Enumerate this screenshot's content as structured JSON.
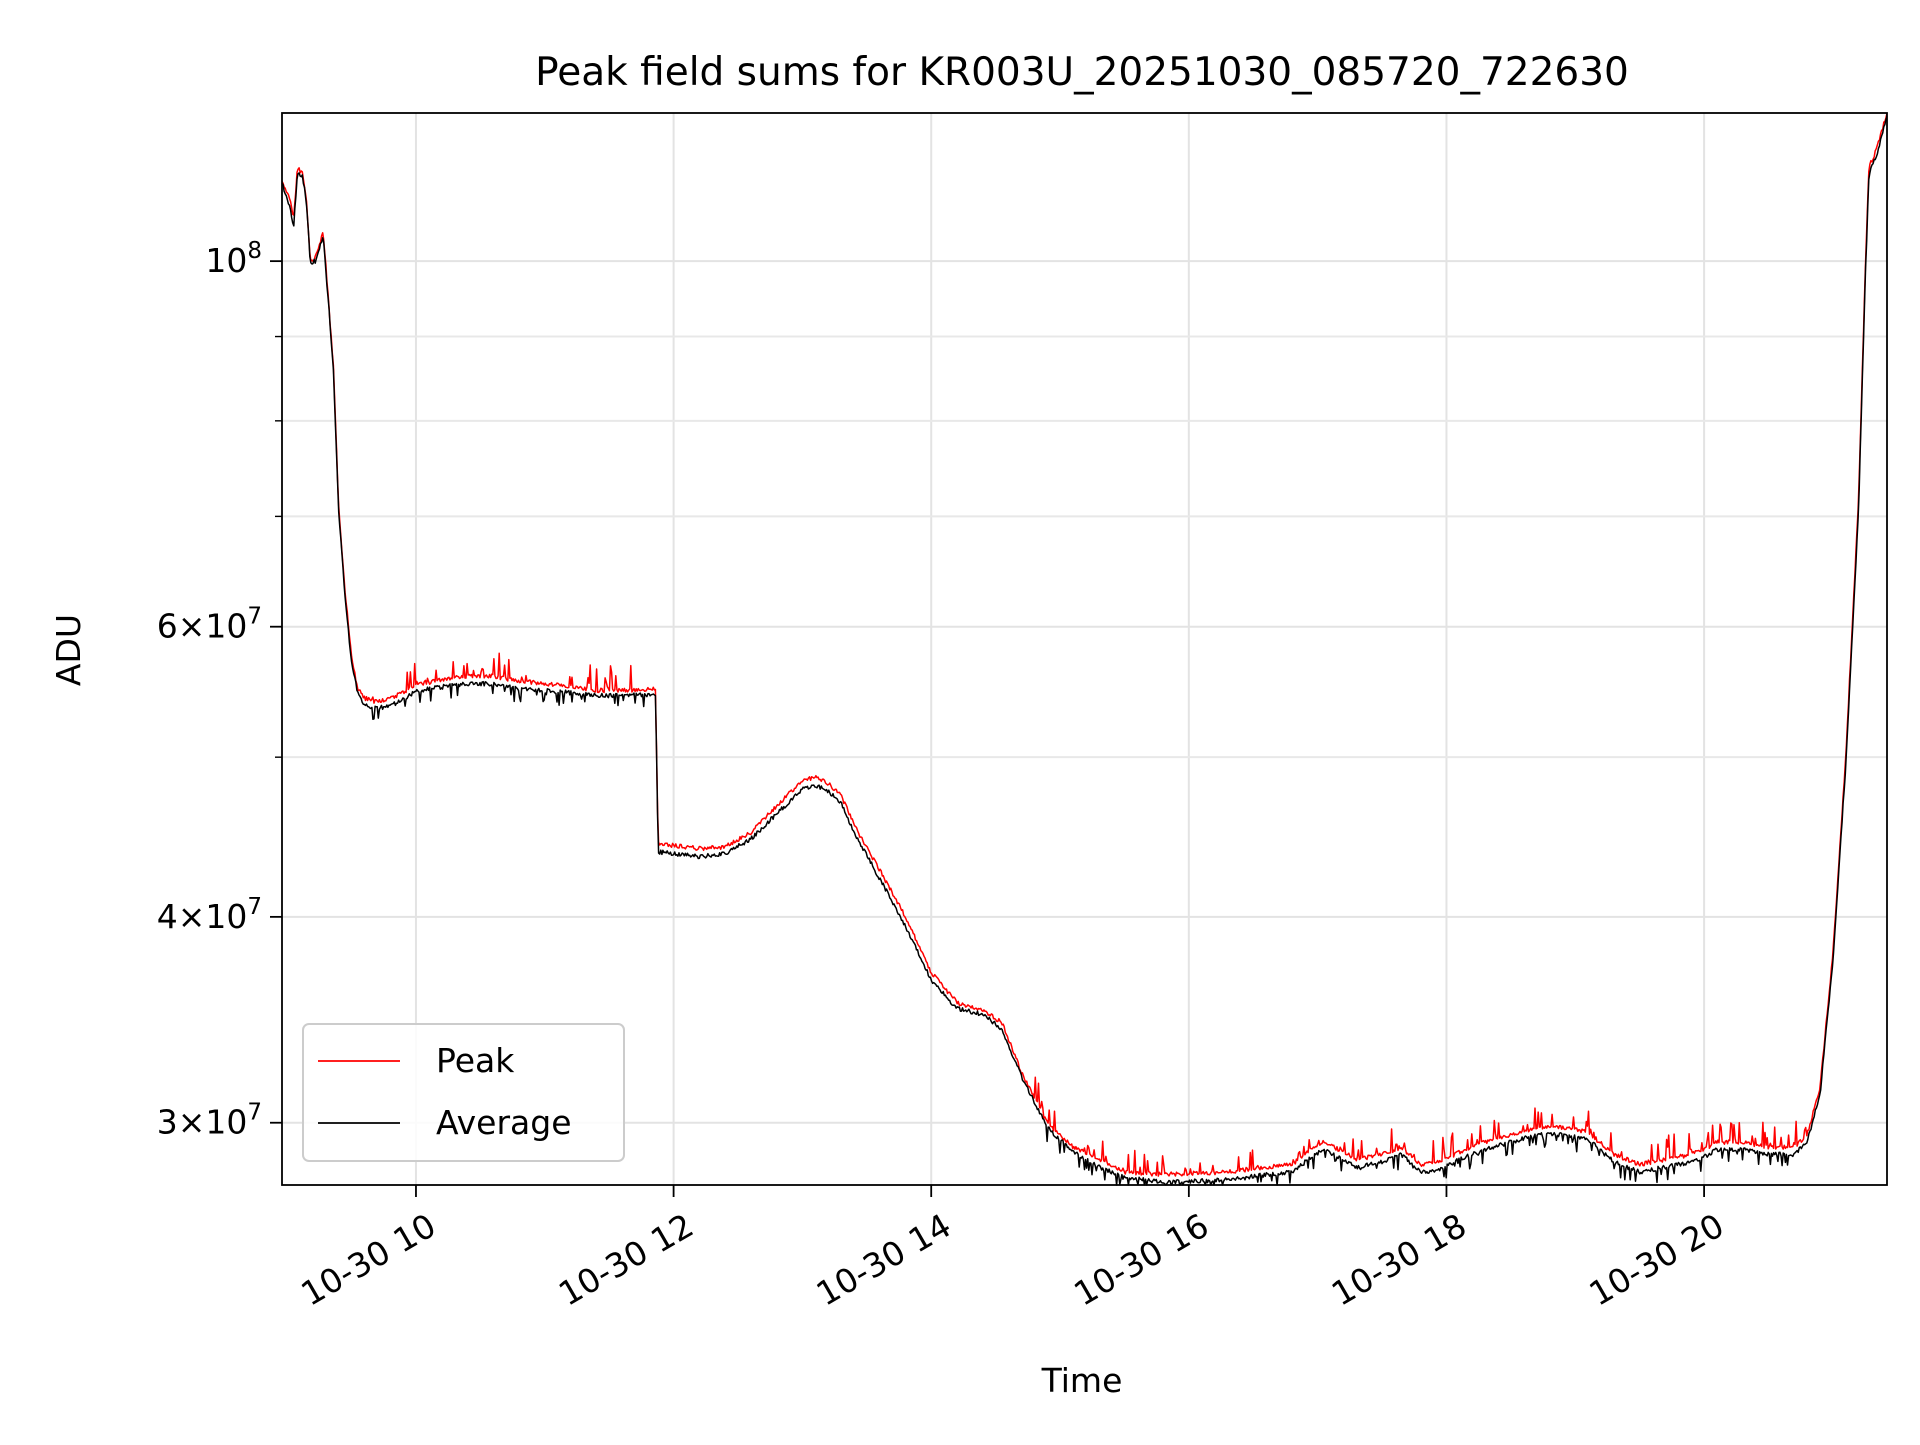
{
  "chart_data": {
    "type": "line",
    "title": "Peak field sums for KR003U_20251030_085720_722630",
    "xlabel": "Time",
    "ylabel": "ADU",
    "yscale": "log",
    "xlim": [
      8.96,
      21.42
    ],
    "ylim": [
      27500000,
      123000000
    ],
    "grid": true,
    "legend_position": "lower-left",
    "x_unit": "hours since 2025-10-30 00:00",
    "x_ticks": [
      {
        "value": 10,
        "label": "10-30 10"
      },
      {
        "value": 12,
        "label": "10-30 12"
      },
      {
        "value": 14,
        "label": "10-30 14"
      },
      {
        "value": 16,
        "label": "10-30 16"
      },
      {
        "value": 18,
        "label": "10-30 18"
      },
      {
        "value": 20,
        "label": "10-30 20"
      }
    ],
    "y_ticks": [
      {
        "value": 100000000,
        "base": "10",
        "exp": "8",
        "label": "10^8"
      },
      {
        "value": 60000000,
        "mantissa": "6",
        "base": "10",
        "exp": "7",
        "label": "6×10^7"
      },
      {
        "value": 40000000,
        "mantissa": "4",
        "base": "10",
        "exp": "7",
        "label": "4×10^7"
      },
      {
        "value": 30000000,
        "mantissa": "3",
        "base": "10",
        "exp": "7",
        "label": "3×10^7"
      }
    ],
    "y_minor_ticks": [
      50000000,
      70000000,
      80000000,
      90000000
    ],
    "series": [
      {
        "name": "Peak",
        "color": "#ff0000",
        "noise": "up",
        "points": [
          [
            8.96,
            112000000
          ],
          [
            9.02,
            109000000
          ],
          [
            9.05,
            106000000
          ],
          [
            9.08,
            114000000
          ],
          [
            9.12,
            113000000
          ],
          [
            9.15,
            109000000
          ],
          [
            9.18,
            100000000
          ],
          [
            9.22,
            100500000
          ],
          [
            9.26,
            103000000
          ],
          [
            9.28,
            104000000
          ],
          [
            9.32,
            95000000
          ],
          [
            9.36,
            86000000
          ],
          [
            9.4,
            71000000
          ],
          [
            9.45,
            63000000
          ],
          [
            9.5,
            57500000
          ],
          [
            9.55,
            55000000
          ],
          [
            9.6,
            54300000
          ],
          [
            9.7,
            54000000
          ],
          [
            9.8,
            54300000
          ],
          [
            9.9,
            54700000
          ],
          [
            10.0,
            55300000
          ],
          [
            10.2,
            55700000
          ],
          [
            10.4,
            56000000
          ],
          [
            10.6,
            56000000
          ],
          [
            10.8,
            55600000
          ],
          [
            11.0,
            55400000
          ],
          [
            11.2,
            55200000
          ],
          [
            11.4,
            54900000
          ],
          [
            11.6,
            54900000
          ],
          [
            11.86,
            55000000
          ],
          [
            11.88,
            44300000
          ],
          [
            12.0,
            44200000
          ],
          [
            12.2,
            44000000
          ],
          [
            12.4,
            44100000
          ],
          [
            12.6,
            45000000
          ],
          [
            12.8,
            46700000
          ],
          [
            13.0,
            48400000
          ],
          [
            13.1,
            48600000
          ],
          [
            13.2,
            48200000
          ],
          [
            13.3,
            47400000
          ],
          [
            13.4,
            45500000
          ],
          [
            13.6,
            42700000
          ],
          [
            13.8,
            40000000
          ],
          [
            14.0,
            37000000
          ],
          [
            14.2,
            35500000
          ],
          [
            14.4,
            35100000
          ],
          [
            14.55,
            34500000
          ],
          [
            14.7,
            32200000
          ],
          [
            14.9,
            30000000
          ],
          [
            15.1,
            29000000
          ],
          [
            15.3,
            28500000
          ],
          [
            15.5,
            28000000
          ],
          [
            15.8,
            27900000
          ],
          [
            16.0,
            27950000
          ],
          [
            16.3,
            28000000
          ],
          [
            16.6,
            28200000
          ],
          [
            16.8,
            28300000
          ],
          [
            16.95,
            28900000
          ],
          [
            17.05,
            29200000
          ],
          [
            17.2,
            28800000
          ],
          [
            17.3,
            28500000
          ],
          [
            17.5,
            28700000
          ],
          [
            17.65,
            29000000
          ],
          [
            17.8,
            28300000
          ],
          [
            17.95,
            28400000
          ],
          [
            18.1,
            28800000
          ],
          [
            18.3,
            29200000
          ],
          [
            18.5,
            29500000
          ],
          [
            18.7,
            29800000
          ],
          [
            18.9,
            29800000
          ],
          [
            19.1,
            29600000
          ],
          [
            19.3,
            28700000
          ],
          [
            19.5,
            28300000
          ],
          [
            19.7,
            28500000
          ],
          [
            19.9,
            28700000
          ],
          [
            20.0,
            28900000
          ],
          [
            20.1,
            29200000
          ],
          [
            20.3,
            29200000
          ],
          [
            20.5,
            29000000
          ],
          [
            20.7,
            29000000
          ],
          [
            20.8,
            29500000
          ],
          [
            20.9,
            31500000
          ],
          [
            21.0,
            38000000
          ],
          [
            21.1,
            50000000
          ],
          [
            21.2,
            72000000
          ],
          [
            21.25,
            98000000
          ],
          [
            21.28,
            114000000
          ],
          [
            21.34,
            117000000
          ],
          [
            21.42,
            123000000
          ]
        ]
      },
      {
        "name": "Average",
        "color": "#000000",
        "noise": "down",
        "points": [
          [
            8.96,
            111500000
          ],
          [
            9.02,
            108000000
          ],
          [
            9.05,
            105000000
          ],
          [
            9.08,
            113000000
          ],
          [
            9.12,
            112500000
          ],
          [
            9.15,
            108500000
          ],
          [
            9.18,
            99800000
          ],
          [
            9.22,
            100000000
          ],
          [
            9.26,
            102500000
          ],
          [
            9.28,
            103500000
          ],
          [
            9.32,
            94500000
          ],
          [
            9.36,
            85500000
          ],
          [
            9.4,
            70500000
          ],
          [
            9.45,
            62500000
          ],
          [
            9.5,
            57000000
          ],
          [
            9.55,
            54600000
          ],
          [
            9.6,
            53800000
          ],
          [
            9.7,
            53500000
          ],
          [
            9.8,
            53800000
          ],
          [
            9.9,
            54200000
          ],
          [
            10.0,
            54800000
          ],
          [
            10.2,
            55200000
          ],
          [
            10.4,
            55400000
          ],
          [
            10.6,
            55400000
          ],
          [
            10.8,
            55000000
          ],
          [
            11.0,
            54900000
          ],
          [
            11.2,
            54700000
          ],
          [
            11.4,
            54500000
          ],
          [
            11.6,
            54500000
          ],
          [
            11.86,
            54600000
          ],
          [
            11.88,
            43800000
          ],
          [
            12.0,
            43700000
          ],
          [
            12.2,
            43500000
          ],
          [
            12.4,
            43700000
          ],
          [
            12.6,
            44600000
          ],
          [
            12.8,
            46200000
          ],
          [
            13.0,
            47800000
          ],
          [
            13.1,
            48100000
          ],
          [
            13.2,
            47700000
          ],
          [
            13.3,
            46900000
          ],
          [
            13.4,
            45000000
          ],
          [
            13.6,
            42200000
          ],
          [
            13.8,
            39500000
          ],
          [
            14.0,
            36600000
          ],
          [
            14.2,
            35200000
          ],
          [
            14.4,
            34900000
          ],
          [
            14.55,
            34200000
          ],
          [
            14.7,
            32000000
          ],
          [
            14.9,
            29800000
          ],
          [
            15.1,
            28800000
          ],
          [
            15.3,
            28200000
          ],
          [
            15.5,
            27800000
          ],
          [
            15.8,
            27600000
          ],
          [
            16.0,
            27650000
          ],
          [
            16.3,
            27700000
          ],
          [
            16.6,
            27900000
          ],
          [
            16.8,
            28000000
          ],
          [
            16.95,
            28600000
          ],
          [
            17.05,
            28900000
          ],
          [
            17.2,
            28500000
          ],
          [
            17.3,
            28200000
          ],
          [
            17.5,
            28400000
          ],
          [
            17.65,
            28700000
          ],
          [
            17.8,
            28000000
          ],
          [
            17.95,
            28100000
          ],
          [
            18.1,
            28500000
          ],
          [
            18.3,
            28900000
          ],
          [
            18.5,
            29200000
          ],
          [
            18.7,
            29500000
          ],
          [
            18.9,
            29500000
          ],
          [
            19.1,
            29300000
          ],
          [
            19.3,
            28400000
          ],
          [
            19.5,
            28000000
          ],
          [
            19.7,
            28200000
          ],
          [
            19.9,
            28400000
          ],
          [
            20.0,
            28600000
          ],
          [
            20.1,
            28900000
          ],
          [
            20.3,
            28900000
          ],
          [
            20.5,
            28700000
          ],
          [
            20.7,
            28700000
          ],
          [
            20.8,
            29200000
          ],
          [
            20.9,
            31200000
          ],
          [
            21.0,
            37600000
          ],
          [
            21.1,
            49500000
          ],
          [
            21.2,
            71000000
          ],
          [
            21.25,
            97000000
          ],
          [
            21.28,
            113000000
          ],
          [
            21.34,
            116000000
          ],
          [
            21.42,
            122500000
          ]
        ]
      }
    ]
  }
}
